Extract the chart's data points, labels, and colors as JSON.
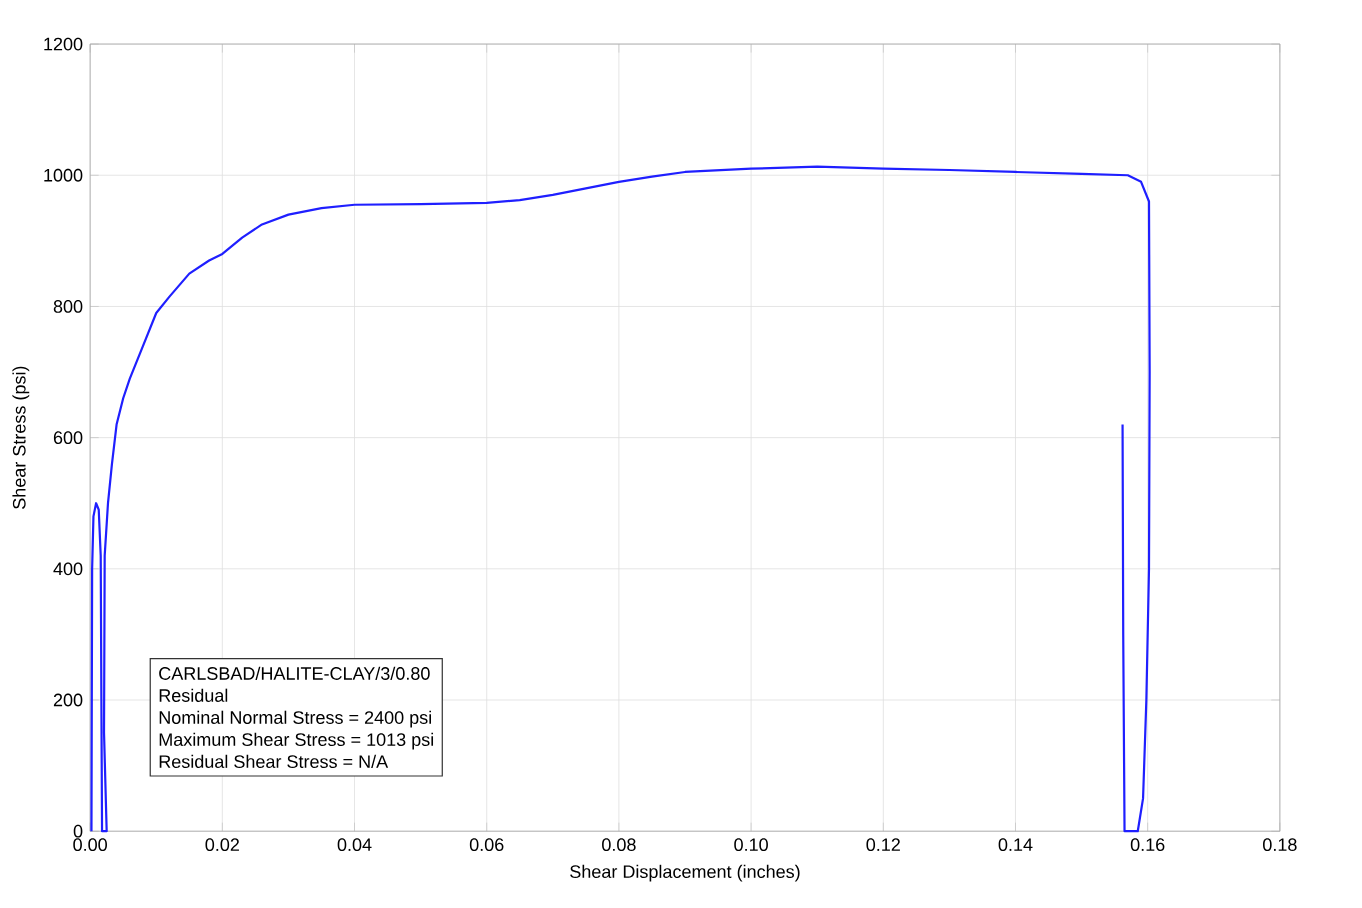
{
  "chart_data": {
    "type": "line",
    "xlabel": "Shear Displacement (inches)",
    "ylabel": "Shear Stress (psi)",
    "series": [
      {
        "color": "#1f1fff",
        "x": [
          0.0002,
          0.0003,
          0.0005,
          0.0009,
          0.0013,
          0.0016,
          0.0017,
          0.0018,
          0.0025,
          0.0021,
          0.0022,
          0.0027,
          0.0033,
          0.004,
          0.005,
          0.006,
          0.008,
          0.01,
          0.012,
          0.015,
          0.018,
          0.02,
          0.023,
          0.026,
          0.03,
          0.035,
          0.04,
          0.05,
          0.06,
          0.065,
          0.07,
          0.075,
          0.08,
          0.085,
          0.09,
          0.1,
          0.11,
          0.12,
          0.13,
          0.14,
          0.15,
          0.157,
          0.159,
          0.1602,
          0.1603,
          0.1602,
          0.1598,
          0.1593,
          0.1585,
          0.1576,
          0.1565,
          0.1563,
          0.1562
        ],
        "values": [
          0,
          400,
          480,
          500,
          490,
          420,
          200,
          0,
          0,
          150,
          420,
          500,
          560,
          620,
          660,
          690,
          740,
          790,
          815,
          850,
          870,
          880,
          905,
          925,
          940,
          950,
          955,
          956,
          958,
          962,
          970,
          980,
          990,
          998,
          1005,
          1010,
          1013,
          1010,
          1008,
          1005,
          1002,
          1000,
          990,
          960,
          700,
          400,
          200,
          50,
          0,
          0,
          0,
          300,
          620
        ]
      }
    ],
    "xlim": [
      0,
      0.18
    ],
    "xticks": [
      {
        "value": 0,
        "label": "0.00"
      },
      {
        "value": 0.02,
        "label": "0.02"
      },
      {
        "value": 0.04,
        "label": "0.04"
      },
      {
        "value": 0.06,
        "label": "0.06"
      },
      {
        "value": 0.08,
        "label": "0.08"
      },
      {
        "value": 0.1,
        "label": "0.10"
      },
      {
        "value": 0.12,
        "label": "0.12"
      },
      {
        "value": 0.14,
        "label": "0.14"
      },
      {
        "value": 0.16,
        "label": "0.16"
      },
      {
        "value": 0.18,
        "label": "0.18"
      }
    ],
    "ylim": [
      0,
      1200
    ],
    "yticks": [
      0,
      200,
      400,
      600,
      800,
      1000,
      1200
    ],
    "grid": true,
    "marker": "none",
    "line_style": "solid",
    "annotations": [
      "CARLSBAD/HALITE-CLAY/3/0.80",
      "Residual",
      "Nominal Normal Stress = 2400 psi",
      "Maximum Shear Stress = 1013 psi",
      "Residual Shear Stress = N/A"
    ]
  }
}
